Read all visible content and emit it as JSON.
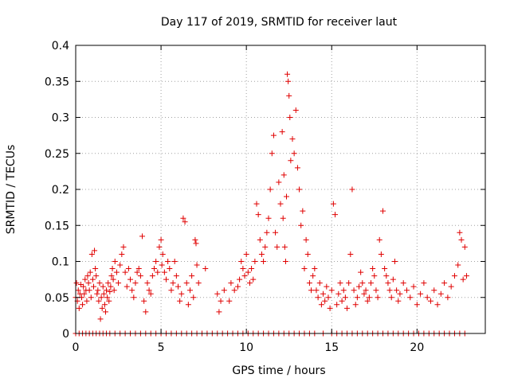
{
  "chart_data": {
    "type": "scatter",
    "title": "Day 117 of 2019, SRMTID for receiver laut",
    "xlabel": "GPS time / hours",
    "ylabel": "SRMTID / TECUs",
    "xlim": [
      0,
      24
    ],
    "ylim": [
      0,
      0.4
    ],
    "xticks": [
      0,
      5,
      10,
      15,
      20
    ],
    "xtick_labels": [
      "0",
      "5",
      "10",
      "15",
      "20"
    ],
    "yticks": [
      0,
      0.05,
      0.1,
      0.15,
      0.2,
      0.25,
      0.3,
      0.35,
      0.4
    ],
    "ytick_labels": [
      "0",
      "0.05",
      "0.1",
      "0.15",
      "0.2",
      "0.25",
      "0.3",
      "0.35",
      "0.4"
    ],
    "grid": true,
    "marker": "plus",
    "color": "#e00000",
    "series": [
      {
        "name": "SRMTID",
        "points": [
          [
            0.0,
            0.05
          ],
          [
            0.05,
            0.07
          ],
          [
            0.1,
            0.045
          ],
          [
            0.15,
            0.06
          ],
          [
            0.2,
            0.035
          ],
          [
            0.25,
            0.055
          ],
          [
            0.3,
            0.068
          ],
          [
            0.35,
            0.05
          ],
          [
            0.4,
            0.04
          ],
          [
            0.45,
            0.065
          ],
          [
            0.5,
            0.055
          ],
          [
            0.55,
            0.075
          ],
          [
            0.6,
            0.06
          ],
          [
            0.65,
            0.045
          ],
          [
            0.7,
            0.08
          ],
          [
            0.75,
            0.07
          ],
          [
            0.8,
            0.06
          ],
          [
            0.85,
            0.085
          ],
          [
            0.9,
            0.05
          ],
          [
            0.95,
            0.11
          ],
          [
            1.0,
            0.075
          ],
          [
            1.05,
            0.065
          ],
          [
            1.1,
            0.115
          ],
          [
            1.15,
            0.09
          ],
          [
            1.2,
            0.08
          ],
          [
            1.25,
            0.055
          ],
          [
            1.3,
            0.06
          ],
          [
            1.35,
            0.045
          ],
          [
            1.4,
            0.07
          ],
          [
            1.45,
            0.02
          ],
          [
            1.5,
            0.05
          ],
          [
            1.55,
            0.035
          ],
          [
            1.6,
            0.065
          ],
          [
            1.65,
            0.055
          ],
          [
            1.7,
            0.04
          ],
          [
            1.75,
            0.03
          ],
          [
            1.8,
            0.06
          ],
          [
            1.85,
            0.05
          ],
          [
            1.9,
            0.07
          ],
          [
            1.95,
            0.045
          ],
          [
            2.0,
            0.058
          ],
          [
            2.05,
            0.065
          ],
          [
            2.1,
            0.08
          ],
          [
            2.15,
            0.09
          ],
          [
            2.2,
            0.075
          ],
          [
            2.25,
            0.06
          ],
          [
            2.3,
            0.1
          ],
          [
            2.4,
            0.085
          ],
          [
            2.5,
            0.07
          ],
          [
            2.6,
            0.095
          ],
          [
            2.7,
            0.11
          ],
          [
            2.8,
            0.12
          ],
          [
            2.9,
            0.085
          ],
          [
            3.0,
            0.065
          ],
          [
            3.1,
            0.09
          ],
          [
            3.2,
            0.075
          ],
          [
            3.3,
            0.06
          ],
          [
            3.4,
            0.05
          ],
          [
            3.5,
            0.07
          ],
          [
            3.6,
            0.085
          ],
          [
            3.7,
            0.09
          ],
          [
            3.8,
            0.08
          ],
          [
            3.9,
            0.135
          ],
          [
            4.0,
            0.045
          ],
          [
            4.1,
            0.03
          ],
          [
            4.2,
            0.07
          ],
          [
            4.3,
            0.06
          ],
          [
            4.4,
            0.055
          ],
          [
            4.5,
            0.08
          ],
          [
            4.6,
            0.09
          ],
          [
            4.7,
            0.1
          ],
          [
            4.8,
            0.085
          ],
          [
            4.9,
            0.12
          ],
          [
            5.0,
            0.13
          ],
          [
            5.05,
            0.095
          ],
          [
            5.1,
            0.11
          ],
          [
            5.2,
            0.085
          ],
          [
            5.3,
            0.075
          ],
          [
            5.4,
            0.1
          ],
          [
            5.5,
            0.09
          ],
          [
            5.6,
            0.06
          ],
          [
            5.7,
            0.07
          ],
          [
            5.8,
            0.1
          ],
          [
            5.9,
            0.08
          ],
          [
            6.0,
            0.065
          ],
          [
            6.1,
            0.045
          ],
          [
            6.2,
            0.055
          ],
          [
            6.3,
            0.16
          ],
          [
            6.4,
            0.155
          ],
          [
            6.5,
            0.07
          ],
          [
            6.6,
            0.04
          ],
          [
            6.7,
            0.06
          ],
          [
            6.8,
            0.08
          ],
          [
            6.9,
            0.05
          ],
          [
            7.0,
            0.13
          ],
          [
            7.05,
            0.125
          ],
          [
            7.1,
            0.095
          ],
          [
            7.2,
            0.07
          ],
          [
            7.6,
            0.09
          ],
          [
            8.3,
            0.055
          ],
          [
            8.4,
            0.03
          ],
          [
            8.5,
            0.045
          ],
          [
            8.7,
            0.06
          ],
          [
            9.0,
            0.045
          ],
          [
            9.1,
            0.07
          ],
          [
            9.3,
            0.06
          ],
          [
            9.5,
            0.065
          ],
          [
            9.6,
            0.075
          ],
          [
            9.7,
            0.1
          ],
          [
            9.8,
            0.09
          ],
          [
            9.9,
            0.08
          ],
          [
            10.0,
            0.11
          ],
          [
            10.1,
            0.085
          ],
          [
            10.2,
            0.07
          ],
          [
            10.3,
            0.09
          ],
          [
            10.4,
            0.075
          ],
          [
            10.5,
            0.1
          ],
          [
            10.6,
            0.18
          ],
          [
            10.7,
            0.165
          ],
          [
            10.8,
            0.13
          ],
          [
            10.9,
            0.11
          ],
          [
            11.0,
            0.1
          ],
          [
            11.1,
            0.12
          ],
          [
            11.2,
            0.14
          ],
          [
            11.3,
            0.16
          ],
          [
            11.4,
            0.2
          ],
          [
            11.5,
            0.25
          ],
          [
            11.6,
            0.275
          ],
          [
            11.7,
            0.14
          ],
          [
            11.8,
            0.12
          ],
          [
            11.9,
            0.21
          ],
          [
            12.0,
            0.18
          ],
          [
            12.1,
            0.28
          ],
          [
            12.15,
            0.16
          ],
          [
            12.2,
            0.22
          ],
          [
            12.25,
            0.12
          ],
          [
            12.3,
            0.1
          ],
          [
            12.35,
            0.19
          ],
          [
            12.4,
            0.36
          ],
          [
            12.45,
            0.35
          ],
          [
            12.5,
            0.33
          ],
          [
            12.55,
            0.3
          ],
          [
            12.6,
            0.24
          ],
          [
            12.7,
            0.27
          ],
          [
            12.8,
            0.25
          ],
          [
            12.9,
            0.31
          ],
          [
            13.0,
            0.23
          ],
          [
            13.1,
            0.2
          ],
          [
            13.2,
            0.15
          ],
          [
            13.3,
            0.17
          ],
          [
            13.4,
            0.09
          ],
          [
            13.5,
            0.13
          ],
          [
            13.6,
            0.11
          ],
          [
            13.7,
            0.07
          ],
          [
            13.8,
            0.06
          ],
          [
            13.9,
            0.08
          ],
          [
            14.0,
            0.09
          ],
          [
            14.1,
            0.06
          ],
          [
            14.2,
            0.05
          ],
          [
            14.3,
            0.07
          ],
          [
            14.4,
            0.04
          ],
          [
            14.5,
            0.055
          ],
          [
            14.6,
            0.045
          ],
          [
            14.7,
            0.065
          ],
          [
            14.8,
            0.05
          ],
          [
            14.9,
            0.035
          ],
          [
            15.0,
            0.06
          ],
          [
            15.1,
            0.18
          ],
          [
            15.2,
            0.165
          ],
          [
            15.3,
            0.04
          ],
          [
            15.4,
            0.055
          ],
          [
            15.5,
            0.07
          ],
          [
            15.6,
            0.045
          ],
          [
            15.7,
            0.06
          ],
          [
            15.8,
            0.05
          ],
          [
            15.9,
            0.035
          ],
          [
            16.0,
            0.07
          ],
          [
            16.1,
            0.11
          ],
          [
            16.2,
            0.2
          ],
          [
            16.3,
            0.06
          ],
          [
            16.4,
            0.04
          ],
          [
            16.5,
            0.05
          ],
          [
            16.6,
            0.065
          ],
          [
            16.7,
            0.085
          ],
          [
            16.8,
            0.07
          ],
          [
            16.9,
            0.055
          ],
          [
            17.0,
            0.06
          ],
          [
            17.1,
            0.045
          ],
          [
            17.2,
            0.05
          ],
          [
            17.3,
            0.07
          ],
          [
            17.4,
            0.09
          ],
          [
            17.5,
            0.08
          ],
          [
            17.6,
            0.06
          ],
          [
            17.7,
            0.05
          ],
          [
            17.8,
            0.13
          ],
          [
            17.9,
            0.11
          ],
          [
            18.0,
            0.17
          ],
          [
            18.1,
            0.09
          ],
          [
            18.2,
            0.08
          ],
          [
            18.3,
            0.07
          ],
          [
            18.4,
            0.06
          ],
          [
            18.5,
            0.05
          ],
          [
            18.6,
            0.075
          ],
          [
            18.7,
            0.1
          ],
          [
            18.8,
            0.06
          ],
          [
            18.9,
            0.045
          ],
          [
            19.0,
            0.055
          ],
          [
            19.2,
            0.07
          ],
          [
            19.4,
            0.06
          ],
          [
            19.6,
            0.05
          ],
          [
            19.8,
            0.065
          ],
          [
            20.0,
            0.04
          ],
          [
            20.2,
            0.055
          ],
          [
            20.4,
            0.07
          ],
          [
            20.6,
            0.05
          ],
          [
            20.8,
            0.045
          ],
          [
            21.0,
            0.06
          ],
          [
            21.2,
            0.04
          ],
          [
            21.4,
            0.055
          ],
          [
            21.6,
            0.07
          ],
          [
            21.8,
            0.05
          ],
          [
            22.0,
            0.065
          ],
          [
            22.2,
            0.08
          ],
          [
            22.4,
            0.095
          ],
          [
            22.5,
            0.14
          ],
          [
            22.6,
            0.13
          ],
          [
            22.7,
            0.075
          ],
          [
            22.8,
            0.12
          ],
          [
            22.9,
            0.08
          ]
        ],
        "zero_points": [
          0.0,
          0.2,
          0.4,
          0.6,
          0.8,
          1.0,
          1.2,
          1.4,
          1.6,
          1.8,
          2.0,
          2.3,
          2.6,
          2.9,
          3.2,
          3.5,
          3.8,
          4.1,
          4.4,
          4.7,
          5.0,
          5.3,
          5.6,
          5.9,
          6.2,
          6.5,
          6.8,
          7.1,
          7.4,
          7.7,
          8.0,
          8.3,
          8.6,
          8.9,
          9.2,
          9.5,
          9.8,
          10.1,
          10.4,
          10.7,
          11.0,
          11.3,
          11.6,
          11.9,
          12.2,
          12.5,
          12.8,
          13.1,
          13.4,
          13.7,
          14.0,
          14.5,
          15.0,
          15.3,
          15.6,
          15.9,
          16.2,
          16.5,
          16.8,
          17.1,
          17.4,
          17.7,
          18.0,
          18.3,
          18.6,
          18.9,
          19.2,
          19.5,
          19.8,
          20.1,
          20.4,
          20.7,
          21.0,
          21.3,
          21.6,
          21.9,
          22.2,
          22.5,
          22.8
        ]
      }
    ]
  }
}
